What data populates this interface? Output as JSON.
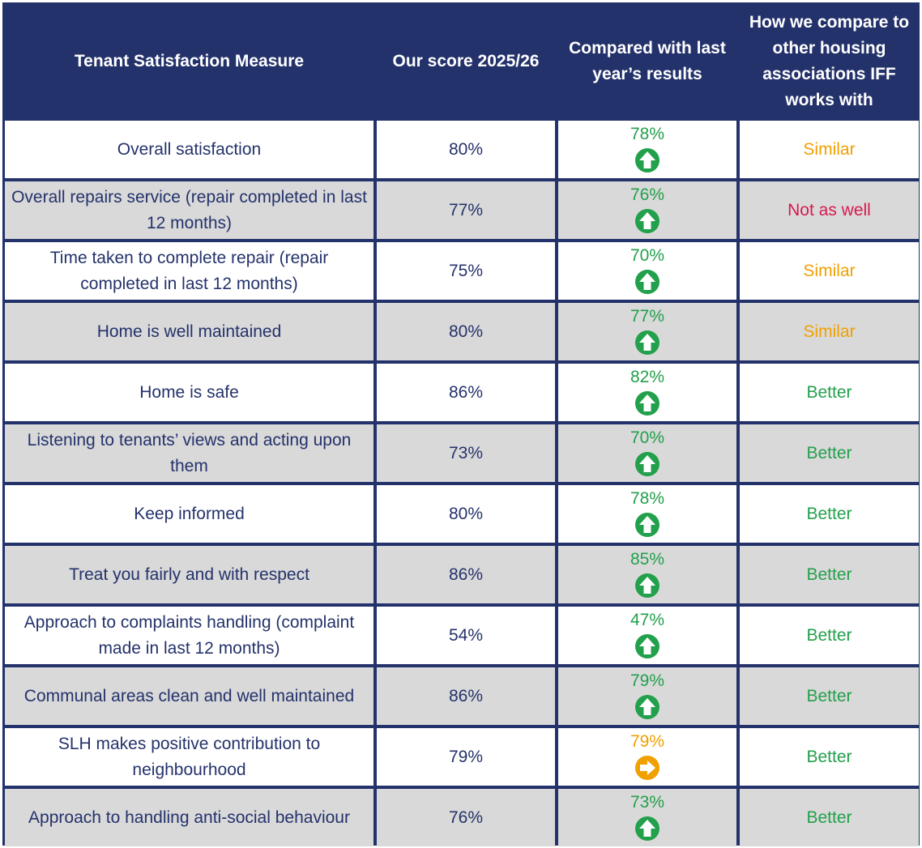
{
  "colors": {
    "header_bg": "#24326b",
    "text_navy": "#24326b",
    "row_grey": "#d9d9d9",
    "green": "#22a04b",
    "amber": "#f0a000",
    "red": "#d8194f"
  },
  "headers": {
    "measure": "Tenant Satisfaction Measure",
    "score": "Our score 2025/26",
    "trend": "Compared with last year’s results",
    "compare": "How we compare to other housing associations IFF works with"
  },
  "rows": [
    {
      "measure": "Overall satisfaction",
      "score": "80%",
      "last_year": "78%",
      "trend_icon": "arrow-up-icon",
      "trend_color": "green",
      "compare": "Similar",
      "compare_color": "amber"
    },
    {
      "measure": "Overall repairs service (repair completed in last 12 months)",
      "score": "77%",
      "last_year": "76%",
      "trend_icon": "arrow-up-icon",
      "trend_color": "green",
      "compare": "Not as well",
      "compare_color": "red"
    },
    {
      "measure": "Time taken to complete repair (repair completed in last 12 months)",
      "score": "75%",
      "last_year": "70%",
      "trend_icon": "arrow-up-icon",
      "trend_color": "green",
      "compare": "Similar",
      "compare_color": "amber"
    },
    {
      "measure": "Home is well maintained",
      "score": "80%",
      "last_year": "77%",
      "trend_icon": "arrow-up-icon",
      "trend_color": "green",
      "compare": "Similar",
      "compare_color": "amber"
    },
    {
      "measure": "Home is safe",
      "score": "86%",
      "last_year": "82%",
      "trend_icon": "arrow-up-icon",
      "trend_color": "green",
      "compare": "Better",
      "compare_color": "green"
    },
    {
      "measure": "Listening to tenants’ views and acting upon them",
      "score": "73%",
      "last_year": "70%",
      "trend_icon": "arrow-up-icon",
      "trend_color": "green",
      "compare": "Better",
      "compare_color": "green"
    },
    {
      "measure": "Keep informed",
      "score": "80%",
      "last_year": "78%",
      "trend_icon": "arrow-up-icon",
      "trend_color": "green",
      "compare": "Better",
      "compare_color": "green"
    },
    {
      "measure": "Treat you fairly and with respect",
      "score": "86%",
      "last_year": "85%",
      "trend_icon": "arrow-up-icon",
      "trend_color": "green",
      "compare": "Better",
      "compare_color": "green"
    },
    {
      "measure": "Approach to complaints handling (complaint made in last 12 months)",
      "score": "54%",
      "last_year": "47%",
      "trend_icon": "arrow-up-icon",
      "trend_color": "green",
      "compare": "Better",
      "compare_color": "green"
    },
    {
      "measure": "Communal areas clean and well maintained",
      "score": "86%",
      "last_year": "79%",
      "trend_icon": "arrow-up-icon",
      "trend_color": "green",
      "compare": "Better",
      "compare_color": "green"
    },
    {
      "measure": "SLH makes positive contribution to neighbourhood",
      "score": "79%",
      "last_year": "79%",
      "trend_icon": "arrow-right-icon",
      "trend_color": "amber",
      "compare": "Better",
      "compare_color": "green"
    },
    {
      "measure": "Approach to handling anti-social behaviour",
      "score": "76%",
      "last_year": "73%",
      "trend_icon": "arrow-up-icon",
      "trend_color": "green",
      "compare": "Better",
      "compare_color": "green"
    }
  ]
}
